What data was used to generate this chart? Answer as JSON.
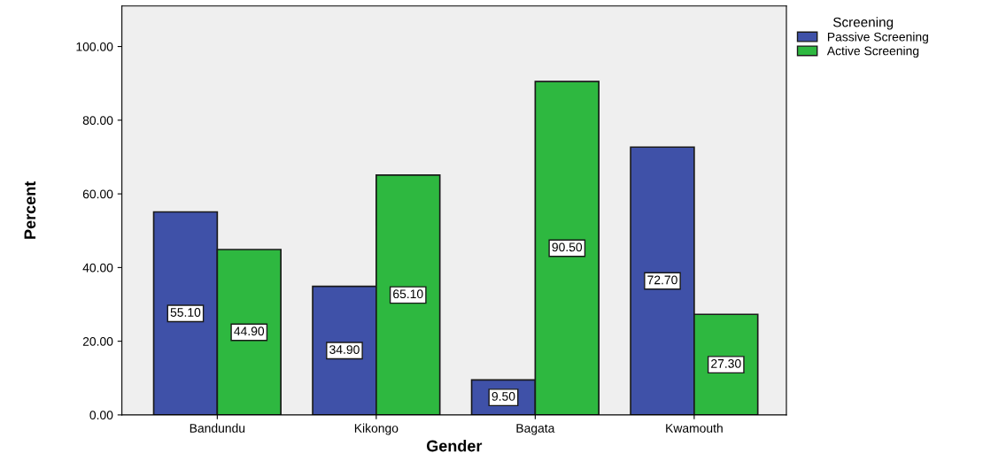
{
  "chart_data": {
    "type": "bar",
    "xlabel": "Gender",
    "ylabel": "Percent",
    "legend_title": "Screening",
    "categories": [
      "Bandundu",
      "Kikongo",
      "Bagata",
      "Kwamouth"
    ],
    "series": [
      {
        "name": "Passive Screening",
        "color": "#3f51a8",
        "values": [
          55.1,
          34.9,
          9.5,
          72.7
        ],
        "value_labels": [
          "55.10",
          "34.90",
          "9.50",
          "72.70"
        ]
      },
      {
        "name": "Active Screening",
        "color": "#2eb840",
        "values": [
          44.9,
          65.1,
          90.5,
          27.3
        ],
        "value_labels": [
          "44.90",
          "65.10",
          "90.50",
          "27.30"
        ]
      }
    ],
    "ylim": [
      0,
      111
    ],
    "yticks": [
      {
        "value": 0,
        "label": "0.00"
      },
      {
        "value": 20,
        "label": "20.00"
      },
      {
        "value": 40,
        "label": "40.00"
      },
      {
        "value": 60,
        "label": "60.00"
      },
      {
        "value": 80,
        "label": "80.00"
      },
      {
        "value": 100,
        "label": "100.00"
      }
    ],
    "legend": "top right",
    "grid": false
  }
}
